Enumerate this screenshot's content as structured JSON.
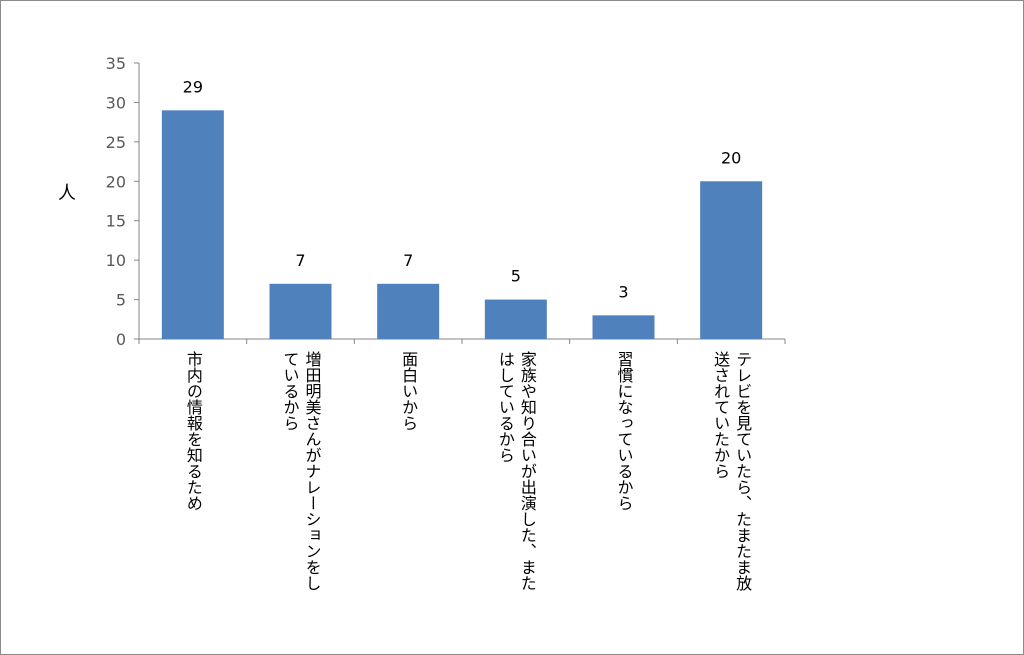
{
  "chart_data": {
    "type": "bar",
    "categories": [
      "市内の情報を知るため",
      "増田明美さんがナレーションをしているから",
      "面白いから",
      "家族や知り合いが出演した、またはしているから",
      "習慣になっているから",
      "テレビを見ていたら、たまたま放送されていたから"
    ],
    "category_lines": [
      [
        "市内の情報を知るため"
      ],
      [
        "増田明美さんがナレーションをし",
        "ているから"
      ],
      [
        "面白いから"
      ],
      [
        "家族や知り合いが出演した、また",
        "はしているから"
      ],
      [
        "習慣になっているから"
      ],
      [
        "テレビを見ていたら、たまたま放",
        "送されていたから"
      ]
    ],
    "values": [
      29,
      7,
      7,
      5,
      3,
      20
    ],
    "ylabel": "人",
    "ylim": [
      0,
      35
    ],
    "yticks": [
      0,
      5,
      10,
      15,
      20,
      25,
      30,
      35
    ],
    "grid": false,
    "legend": "none",
    "bar_color": "#4f81bd"
  }
}
